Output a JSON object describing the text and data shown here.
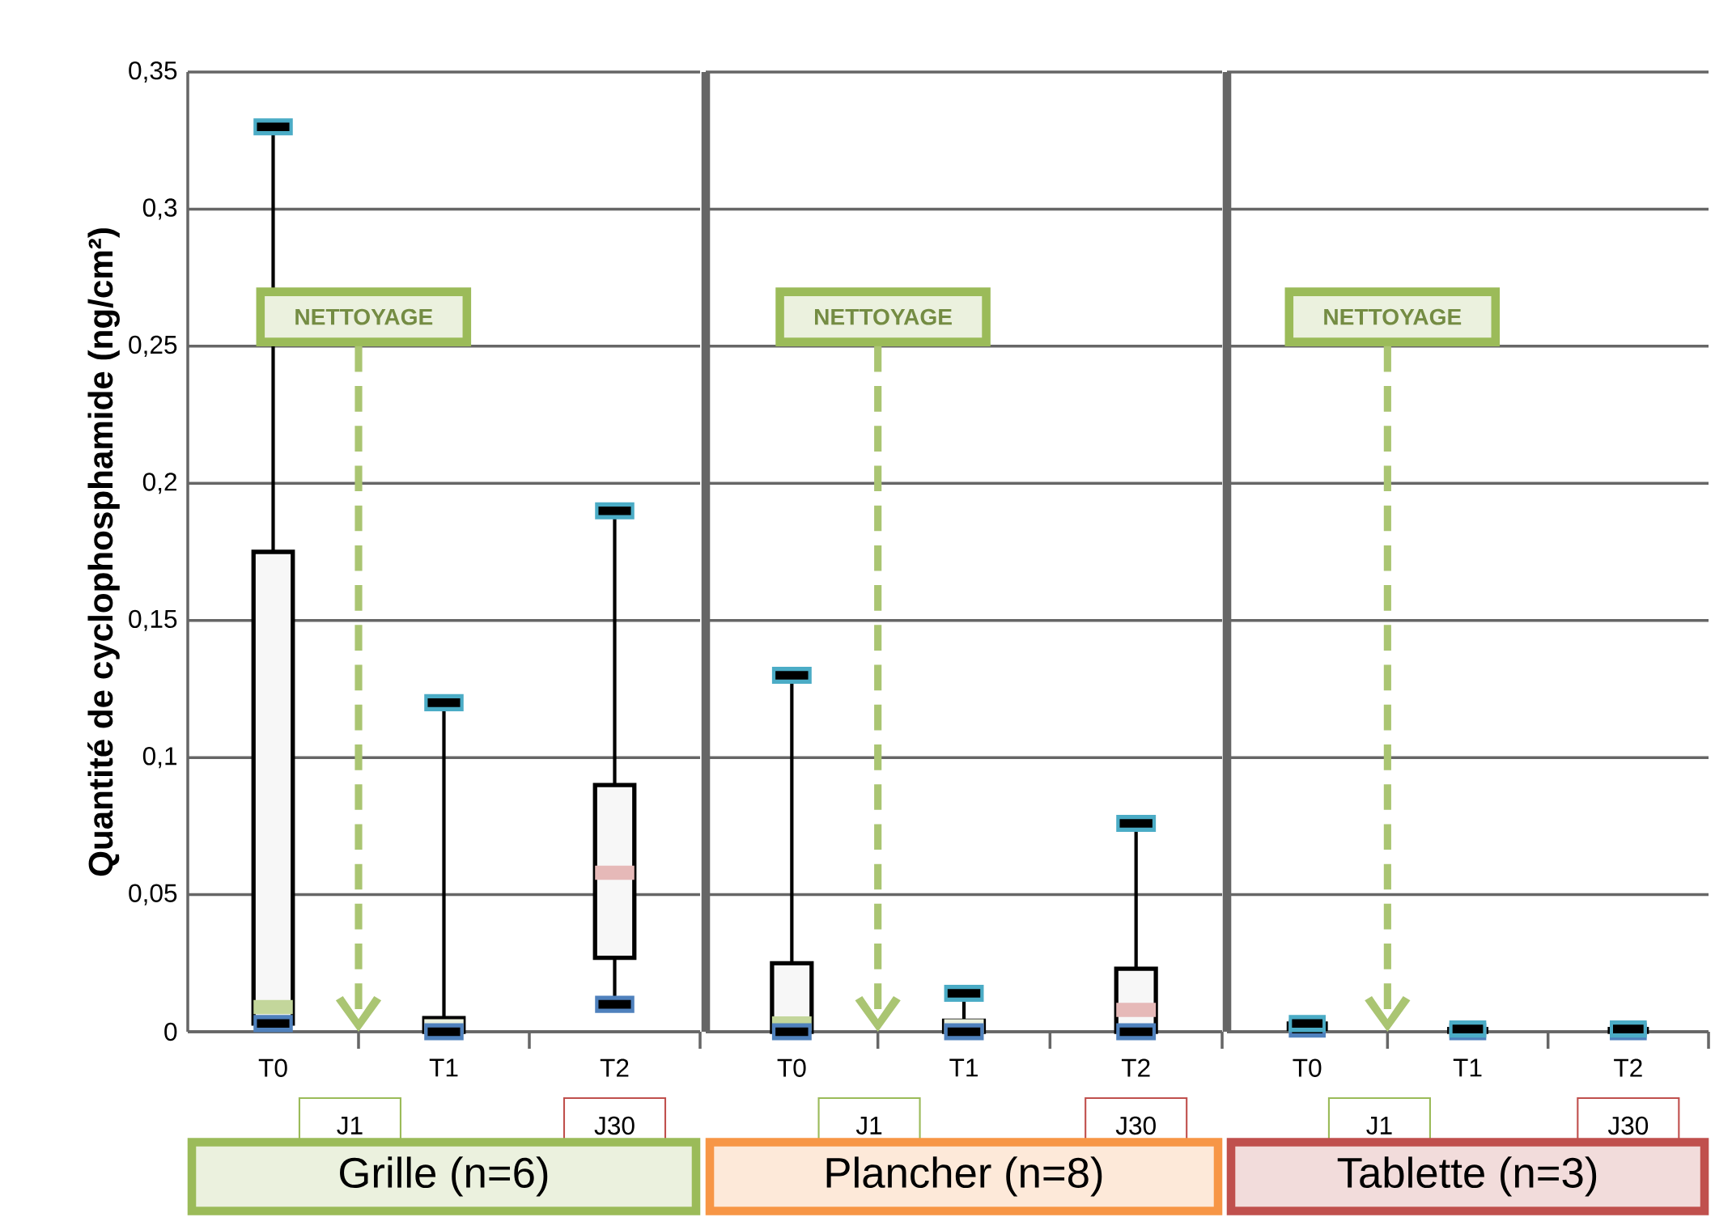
{
  "chart_data": [
    {
      "type": "box",
      "title": "Grille (n=6)",
      "ylabel": "Quantité de cyclophosphamide (ng/cm²)",
      "categories": [
        "T0",
        "T1",
        "T2"
      ],
      "boxes": [
        {
          "low": 0.003,
          "q1": 0.003,
          "median": 0.009,
          "q3": 0.175,
          "high": 0.33
        },
        {
          "low": 0,
          "q1": 0,
          "median": 0.002,
          "q3": 0.005,
          "high": 0.12
        },
        {
          "low": 0.01,
          "q1": 0.027,
          "median": 0.058,
          "q3": 0.09,
          "high": 0.19
        }
      ],
      "ylim": [
        0,
        0.35
      ],
      "yticks": [
        0,
        {
          "value": 0.05,
          "label": "0,05"
        },
        {
          "value": 0.1,
          "label": "0,1"
        },
        {
          "value": 0.15,
          "label": "0,15"
        },
        {
          "value": 0.2,
          "label": "0,2"
        },
        {
          "value": 0.25,
          "label": "0,25"
        },
        {
          "value": 0.3,
          "label": "0,3"
        },
        {
          "value": 0.35,
          "label": "0,35"
        }
      ],
      "grid": "y",
      "annotations": [
        "NETTOYAGE",
        "J1",
        "J30"
      ]
    },
    {
      "type": "box",
      "title": "Plancher (n=8)",
      "categories": [
        "T0",
        "T1",
        "T2"
      ],
      "boxes": [
        {
          "low": 0,
          "q1": 0,
          "median": 0.003,
          "q3": 0.025,
          "high": 0.13
        },
        {
          "low": 0,
          "q1": 0,
          "median": 0.002,
          "q3": 0.004,
          "high": 0.014
        },
        {
          "low": 0,
          "q1": 0,
          "median": 0.008,
          "q3": 0.023,
          "high": 0.076
        }
      ],
      "ylim": [
        0,
        0.35
      ],
      "yticks": [
        0,
        0.05,
        0.1,
        0.15,
        0.2,
        0.25,
        0.3,
        0.35
      ],
      "tick_labels": "x",
      "grid": "y",
      "annotations": [
        "NETTOYAGE",
        "J1",
        "J30"
      ]
    },
    {
      "type": "box",
      "title": "Tablette (n=3)",
      "categories": [
        "T0",
        "T1",
        "T2"
      ],
      "boxes": [
        {
          "low": 0.001,
          "q1": 0.001,
          "median": 0.002,
          "q3": 0.003,
          "high": 0.003
        },
        {
          "low": 0,
          "q1": 0,
          "median": 0.001,
          "q3": 0.001,
          "high": 0.001
        },
        {
          "low": 0,
          "q1": 0,
          "median": 0.001,
          "q3": 0.001,
          "high": 0.001
        }
      ],
      "ylim": [
        0,
        0.35
      ],
      "yticks": [
        0,
        0.05,
        0.1,
        0.15,
        0.2,
        0.25,
        0.3,
        0.35
      ],
      "tick_labels": "x",
      "grid": "y",
      "annotations": [
        "NETTOYAGE",
        "J1",
        "J30"
      ]
    }
  ]
}
